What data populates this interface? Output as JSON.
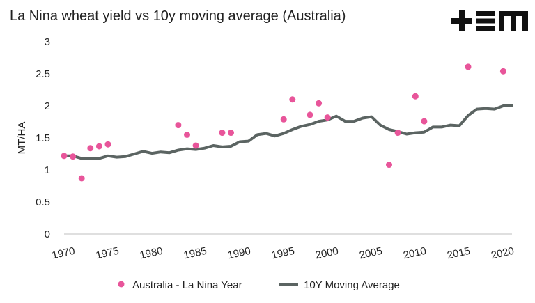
{
  "logo": {
    "text": "+EM",
    "icon": "tem-logo"
  },
  "chart_data": {
    "type": "scatter+line",
    "title": "La Nina wheat yield vs 10y moving average (Australia)",
    "ylabel": "MT/HA",
    "xlabel": "",
    "ylim": [
      0,
      3
    ],
    "xlim": [
      1970,
      2021
    ],
    "y_ticks": [
      0,
      0.5,
      1,
      1.5,
      2,
      2.5,
      3
    ],
    "y_tick_labels": [
      "0",
      "0.5",
      "1",
      "1.5",
      "2",
      "2.5",
      "3"
    ],
    "x_ticks": [
      1970,
      1975,
      1980,
      1985,
      1990,
      1995,
      2000,
      2005,
      2010,
      2015,
      2020
    ],
    "x_tick_labels": [
      "1970",
      "1975",
      "1980",
      "1985",
      "1990",
      "1995",
      "2000",
      "2005",
      "2010",
      "2015",
      "2020"
    ],
    "grid": false,
    "legend_position": "bottom",
    "series": [
      {
        "name": "Australia - La Nina Year",
        "kind": "scatter",
        "color": "#e8559a",
        "points": [
          [
            1970,
            1.22
          ],
          [
            1971,
            1.21
          ],
          [
            1972,
            0.87
          ],
          [
            1973,
            1.34
          ],
          [
            1974,
            1.37
          ],
          [
            1975,
            1.4
          ],
          [
            1983,
            1.7
          ],
          [
            1984,
            1.55
          ],
          [
            1985,
            1.38
          ],
          [
            1988,
            1.58
          ],
          [
            1989,
            1.58
          ],
          [
            1995,
            1.79
          ],
          [
            1996,
            2.1
          ],
          [
            1998,
            1.86
          ],
          [
            1999,
            2.04
          ],
          [
            2000,
            1.82
          ],
          [
            2007,
            1.08
          ],
          [
            2008,
            1.58
          ],
          [
            2010,
            2.15
          ],
          [
            2011,
            1.76
          ],
          [
            2016,
            2.61
          ],
          [
            2020,
            2.54
          ]
        ]
      },
      {
        "name": "10Y Moving Average",
        "kind": "line",
        "color": "#5b6462",
        "x": [
          1970,
          1971,
          1972,
          1973,
          1974,
          1975,
          1976,
          1977,
          1978,
          1979,
          1980,
          1981,
          1982,
          1983,
          1984,
          1985,
          1986,
          1987,
          1988,
          1989,
          1990,
          1991,
          1992,
          1993,
          1994,
          1995,
          1996,
          1997,
          1998,
          1999,
          2000,
          2001,
          2002,
          2003,
          2004,
          2005,
          2006,
          2007,
          2008,
          2009,
          2010,
          2011,
          2012,
          2013,
          2014,
          2015,
          2016,
          2017,
          2018,
          2019,
          2020,
          2021
        ],
        "y": [
          1.22,
          1.22,
          1.18,
          1.18,
          1.18,
          1.22,
          1.2,
          1.21,
          1.25,
          1.29,
          1.26,
          1.28,
          1.27,
          1.31,
          1.33,
          1.32,
          1.34,
          1.38,
          1.36,
          1.37,
          1.44,
          1.45,
          1.55,
          1.57,
          1.53,
          1.57,
          1.63,
          1.68,
          1.71,
          1.76,
          1.78,
          1.84,
          1.76,
          1.76,
          1.81,
          1.83,
          1.7,
          1.63,
          1.6,
          1.56,
          1.58,
          1.59,
          1.67,
          1.67,
          1.7,
          1.69,
          1.85,
          1.95,
          1.96,
          1.95,
          2.0,
          2.01
        ]
      }
    ]
  }
}
